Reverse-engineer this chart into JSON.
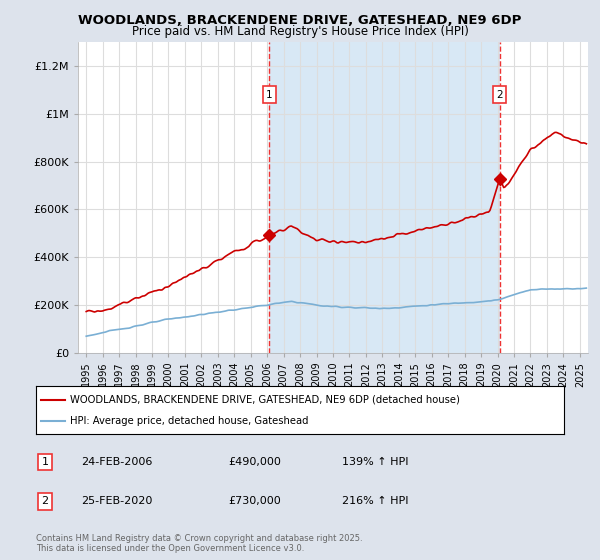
{
  "title": "WOODLANDS, BRACKENDENE DRIVE, GATESHEAD, NE9 6DP",
  "subtitle": "Price paid vs. HM Land Registry's House Price Index (HPI)",
  "legend_line1": "WOODLANDS, BRACKENDENE DRIVE, GATESHEAD, NE9 6DP (detached house)",
  "legend_line2": "HPI: Average price, detached house, Gateshead",
  "annotation1_label": "1",
  "annotation1_date": "24-FEB-2006",
  "annotation1_price": "£490,000",
  "annotation1_hpi": "139% ↑ HPI",
  "annotation1_year": 2006.14,
  "annotation1_value": 490000,
  "annotation2_label": "2",
  "annotation2_date": "25-FEB-2020",
  "annotation2_price": "£730,000",
  "annotation2_hpi": "216% ↑ HPI",
  "annotation2_year": 2020.14,
  "annotation2_value": 730000,
  "background_color": "#dde3ec",
  "plot_bg_color": "#ffffff",
  "highlight_bg_color": "#d8e8f5",
  "red_line_color": "#cc0000",
  "blue_line_color": "#7aafd4",
  "vline_color": "#ee3333",
  "grid_color": "#dddddd",
  "copyright_text": "Contains HM Land Registry data © Crown copyright and database right 2025.\nThis data is licensed under the Open Government Licence v3.0.",
  "ylim": [
    0,
    1300000
  ],
  "yticks": [
    0,
    200000,
    400000,
    600000,
    800000,
    1000000,
    1200000
  ],
  "ytick_labels": [
    "£0",
    "£200K",
    "£400K",
    "£600K",
    "£800K",
    "£1M",
    "£1.2M"
  ],
  "xlim_start": 1994.5,
  "xlim_end": 2025.5
}
